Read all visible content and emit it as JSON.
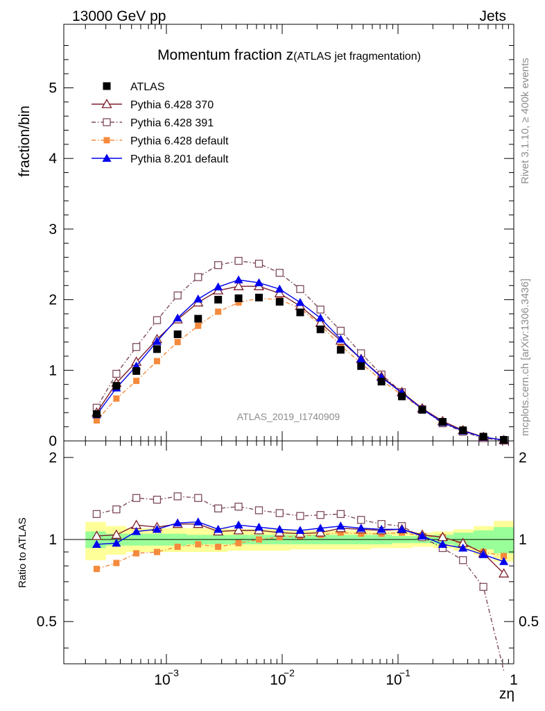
{
  "header": {
    "left": "13000 GeV pp",
    "right": "Jets"
  },
  "side_text": {
    "top": "Rivet 3.1.10, ≥ 400k events",
    "bottom": "mcplots.cern.ch [arXiv:1306.3436]"
  },
  "watermark": "ATLAS_2019_I1740909",
  "colors": {
    "atlas": "#000000",
    "p370": "#7b1e2a",
    "p391": "#7d4a5a",
    "p6def": "#f58a3c",
    "p8def": "#0000ee",
    "band_yellow": "#ffff99",
    "band_green": "#99ff99"
  },
  "chart_data": [
    {
      "type": "line",
      "title": "Momentum fraction z",
      "title_sub": "(ATLAS jet fragmentation)",
      "ylabel": "fraction/bin",
      "xlog": true,
      "xlim": [
        0.00013,
        1.0
      ],
      "ylim": [
        0,
        5.9
      ],
      "yticks": [
        0,
        1,
        2,
        3,
        4,
        5
      ],
      "legend_position": "top-left",
      "x": [
        0.00025,
        0.00037,
        0.00055,
        0.00083,
        0.00125,
        0.00188,
        0.0028,
        0.0042,
        0.0063,
        0.0095,
        0.0143,
        0.0214,
        0.032,
        0.048,
        0.072,
        0.108,
        0.162,
        0.243,
        0.364,
        0.546,
        0.82
      ],
      "series": [
        {
          "name": "ATLAS",
          "key": "atlas",
          "marker": "square",
          "values": [
            0.38,
            0.78,
            0.99,
            1.3,
            1.51,
            1.73,
            2.0,
            2.02,
            2.03,
            1.97,
            1.82,
            1.58,
            1.29,
            1.06,
            0.84,
            0.63,
            0.44,
            0.27,
            0.15,
            0.06,
            0.015
          ]
        },
        {
          "name": "Pythia 6.428 370",
          "key": "p370",
          "marker": "open-triangle",
          "dash": "",
          "values": [
            0.4,
            0.82,
            1.12,
            1.44,
            1.72,
            1.96,
            2.13,
            2.19,
            2.19,
            2.09,
            1.91,
            1.67,
            1.42,
            1.16,
            0.91,
            0.69,
            0.46,
            0.28,
            0.15,
            0.055,
            0.012
          ]
        },
        {
          "name": "Pythia 6.428 391",
          "key": "p391",
          "marker": "open-square",
          "dash": "6,3,1.5,3",
          "values": [
            0.47,
            0.95,
            1.33,
            1.71,
            2.06,
            2.32,
            2.49,
            2.55,
            2.51,
            2.38,
            2.15,
            1.86,
            1.56,
            1.24,
            0.94,
            0.69,
            0.45,
            0.25,
            0.13,
            0.04,
            0.005
          ]
        },
        {
          "name": "Pythia 6.428 default",
          "key": "p6def",
          "marker": "filled-square-small",
          "dash": "6,3,1.5,3",
          "values": [
            0.29,
            0.6,
            0.85,
            1.13,
            1.4,
            1.63,
            1.83,
            1.96,
            2.02,
            2.0,
            1.88,
            1.64,
            1.35,
            1.1,
            0.86,
            0.65,
            0.45,
            0.27,
            0.14,
            0.055,
            0.012
          ]
        },
        {
          "name": "Pythia 8.201 default",
          "key": "p8def",
          "marker": "filled-triangle",
          "dash": "",
          "values": [
            0.37,
            0.75,
            1.06,
            1.41,
            1.74,
            2.01,
            2.18,
            2.28,
            2.24,
            2.15,
            1.96,
            1.74,
            1.44,
            1.16,
            0.9,
            0.68,
            0.45,
            0.26,
            0.14,
            0.053,
            0.012
          ]
        }
      ]
    },
    {
      "type": "line",
      "ylabel": "Ratio to ATLAS",
      "xlabel": "zη",
      "xlog": true,
      "xlim": [
        0.00013,
        1.0
      ],
      "ylim": [
        0.35,
        2.3
      ],
      "yticks": [
        0.5,
        1,
        2
      ],
      "xtick_labels": [
        "10",
        "10",
        "10",
        "1"
      ],
      "xtick_exponents": [
        "−3",
        "−2",
        "−1",
        ""
      ],
      "x": [
        0.00025,
        0.00037,
        0.00055,
        0.00083,
        0.00125,
        0.00188,
        0.0028,
        0.0042,
        0.0063,
        0.0095,
        0.0143,
        0.0214,
        0.032,
        0.048,
        0.072,
        0.108,
        0.162,
        0.243,
        0.364,
        0.546,
        0.82
      ],
      "band_edges": [
        0.0002,
        0.0003,
        0.00045,
        0.00067,
        0.001,
        0.0015,
        0.0023,
        0.0034,
        0.0052,
        0.0078,
        0.0117,
        0.0176,
        0.0263,
        0.0395,
        0.059,
        0.089,
        0.133,
        0.2,
        0.3,
        0.45,
        0.67,
        1.0
      ],
      "band_yellow": [
        0.16,
        0.12,
        0.1,
        0.1,
        0.1,
        0.1,
        0.1,
        0.09,
        0.09,
        0.09,
        0.08,
        0.08,
        0.08,
        0.08,
        0.07,
        0.07,
        0.06,
        0.07,
        0.09,
        0.12,
        0.17
      ],
      "band_green": [
        0.07,
        0.05,
        0.05,
        0.05,
        0.05,
        0.04,
        0.04,
        0.04,
        0.04,
        0.04,
        0.04,
        0.04,
        0.04,
        0.04,
        0.04,
        0.03,
        0.03,
        0.04,
        0.06,
        0.08,
        0.11
      ],
      "series": [
        {
          "name": "Pythia 6.428 370",
          "key": "p370",
          "marker": "open-triangle",
          "dash": "",
          "values": [
            1.03,
            1.04,
            1.13,
            1.11,
            1.14,
            1.14,
            1.07,
            1.08,
            1.08,
            1.06,
            1.05,
            1.06,
            1.1,
            1.09,
            1.08,
            1.09,
            1.04,
            1.02,
            0.97,
            0.89,
            0.75
          ]
        },
        {
          "name": "Pythia 6.428 391",
          "key": "p391",
          "marker": "open-square",
          "dash": "6,3,1.5,3",
          "values": [
            1.24,
            1.29,
            1.42,
            1.4,
            1.44,
            1.42,
            1.3,
            1.32,
            1.28,
            1.25,
            1.22,
            1.23,
            1.24,
            1.18,
            1.14,
            1.12,
            1.02,
            0.93,
            0.84,
            0.67,
            0.33
          ]
        },
        {
          "name": "Pythia 6.428 default",
          "key": "p6def",
          "marker": "filled-square-small",
          "dash": "6,3,1.5,3",
          "values": [
            0.78,
            0.82,
            0.89,
            0.9,
            0.94,
            0.96,
            0.94,
            0.97,
            1.0,
            1.02,
            1.03,
            1.04,
            1.06,
            1.05,
            1.05,
            1.06,
            1.03,
            1.02,
            0.96,
            0.9,
            0.87
          ]
        },
        {
          "name": "Pythia 8.201 default",
          "key": "p8def",
          "marker": "filled-triangle",
          "dash": "",
          "values": [
            0.96,
            0.97,
            1.07,
            1.09,
            1.15,
            1.16,
            1.09,
            1.13,
            1.11,
            1.09,
            1.08,
            1.1,
            1.12,
            1.1,
            1.09,
            1.09,
            1.03,
            0.96,
            0.93,
            0.88,
            0.83
          ]
        }
      ]
    }
  ]
}
